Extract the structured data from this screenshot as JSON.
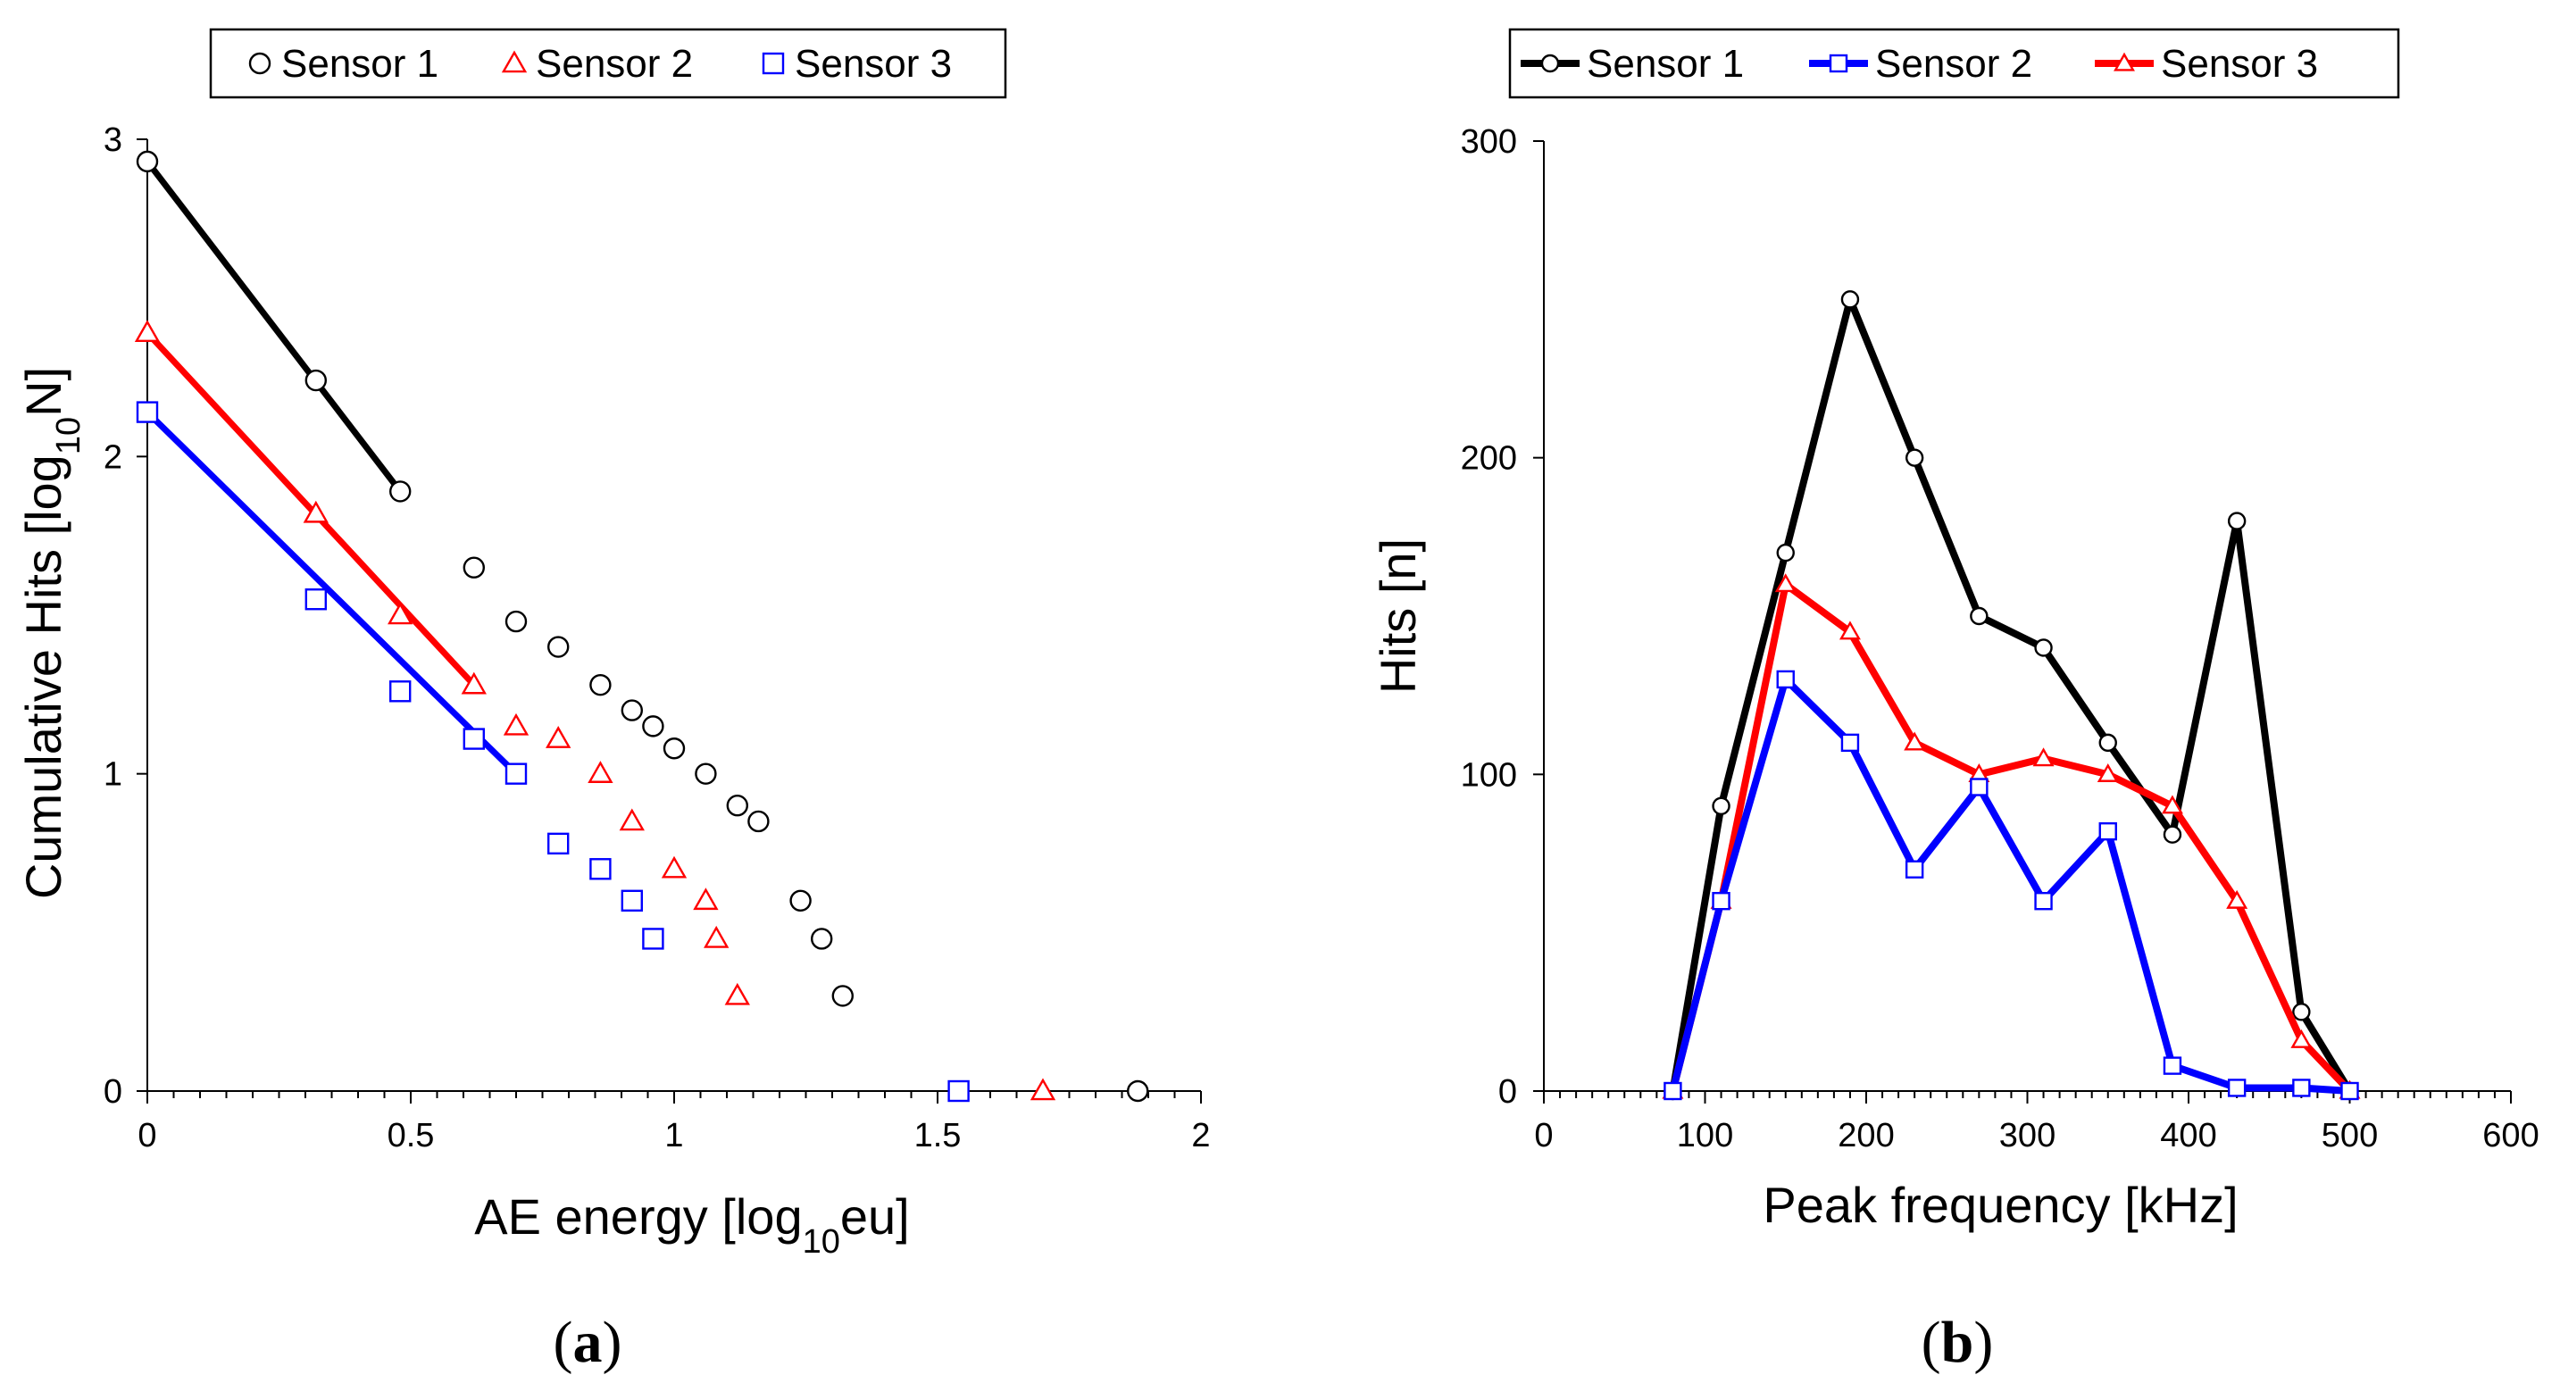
{
  "chart_data": [
    {
      "type": "scatter",
      "panel_label": "a",
      "xlabel_parts": [
        "AE energy [log",
        "10",
        "eu]"
      ],
      "ylabel_parts": [
        "Cumulative Hits [log",
        "10",
        "N]"
      ],
      "xlim": [
        0,
        2
      ],
      "ylim": [
        0,
        3
      ],
      "xticks": [
        "0",
        "0.5",
        "1",
        "1.5",
        "2"
      ],
      "yticks": [
        "0",
        "1",
        "2",
        "3"
      ],
      "legend": [
        "Sensor 1",
        "Sensor 2",
        "Sensor 3"
      ],
      "series": [
        {
          "name": "Sensor 1",
          "marker": "circle",
          "color": "#000000",
          "points": [
            [
              0,
              2.93
            ],
            [
              0.32,
              2.24
            ],
            [
              0.48,
              1.89
            ],
            [
              0.62,
              1.65
            ],
            [
              0.7,
              1.48
            ],
            [
              0.78,
              1.4
            ],
            [
              0.86,
              1.28
            ],
            [
              0.92,
              1.2
            ],
            [
              0.96,
              1.15
            ],
            [
              1.0,
              1.08
            ],
            [
              1.06,
              1.0
            ],
            [
              1.12,
              0.9
            ],
            [
              1.16,
              0.85
            ],
            [
              1.24,
              0.6
            ],
            [
              1.28,
              0.48
            ],
            [
              1.32,
              0.3
            ],
            [
              1.88,
              0.0
            ]
          ],
          "fit_line": [
            [
              0,
              2.93
            ],
            [
              0.48,
              1.89
            ]
          ],
          "fit_color": "#000000"
        },
        {
          "name": "Sensor 2",
          "marker": "triangle",
          "color": "#ff0000",
          "points": [
            [
              0,
              2.39
            ],
            [
              0.32,
              1.82
            ],
            [
              0.48,
              1.5
            ],
            [
              0.62,
              1.28
            ],
            [
              0.7,
              1.15
            ],
            [
              0.78,
              1.11
            ],
            [
              0.86,
              1.0
            ],
            [
              0.92,
              0.85
            ],
            [
              1.0,
              0.7
            ],
            [
              1.06,
              0.6
            ],
            [
              1.08,
              0.48
            ],
            [
              1.12,
              0.3
            ],
            [
              1.7,
              0.0
            ]
          ],
          "fit_line": [
            [
              0,
              2.39
            ],
            [
              0.62,
              1.28
            ]
          ],
          "fit_color": "#ff0000"
        },
        {
          "name": "Sensor 3",
          "marker": "square",
          "color": "#0000ff",
          "points": [
            [
              0,
              2.14
            ],
            [
              0.32,
              1.55
            ],
            [
              0.48,
              1.26
            ],
            [
              0.62,
              1.11
            ],
            [
              0.7,
              1.0
            ],
            [
              0.78,
              0.78
            ],
            [
              0.86,
              0.7
            ],
            [
              0.92,
              0.6
            ],
            [
              0.96,
              0.48
            ],
            [
              1.54,
              0.0
            ]
          ],
          "fit_line": [
            [
              0,
              2.14
            ],
            [
              0.7,
              1.0
            ]
          ],
          "fit_color": "#0000ff"
        }
      ]
    },
    {
      "type": "line",
      "panel_label": "b",
      "xlabel": "Peak frequency [kHz]",
      "ylabel": "Hits [n]",
      "xlim": [
        0,
        600
      ],
      "ylim": [
        0,
        300
      ],
      "xticks": [
        "0",
        "100",
        "200",
        "300",
        "400",
        "500",
        "600"
      ],
      "yticks": [
        "0",
        "100",
        "200",
        "300"
      ],
      "legend": [
        "Sensor 1",
        "Sensor 2",
        "Sensor 3"
      ],
      "x": [
        80,
        110,
        150,
        190,
        230,
        270,
        310,
        350,
        390,
        430,
        470,
        500
      ],
      "series": [
        {
          "name": "Sensor 1",
          "marker": "circle",
          "color": "#000000",
          "values": [
            0,
            90,
            170,
            250,
            200,
            150,
            140,
            110,
            81,
            180,
            25,
            0
          ]
        },
        {
          "name": "Sensor 2",
          "marker": "square",
          "color": "#0000ff",
          "values": [
            0,
            60,
            130,
            110,
            70,
            96,
            60,
            82,
            8,
            1,
            1,
            0
          ]
        },
        {
          "name": "Sensor 3",
          "marker": "triangle",
          "color": "#ff0000",
          "values": [
            0,
            60,
            160,
            145,
            110,
            100,
            105,
            100,
            90,
            60,
            16,
            0
          ]
        }
      ]
    }
  ]
}
